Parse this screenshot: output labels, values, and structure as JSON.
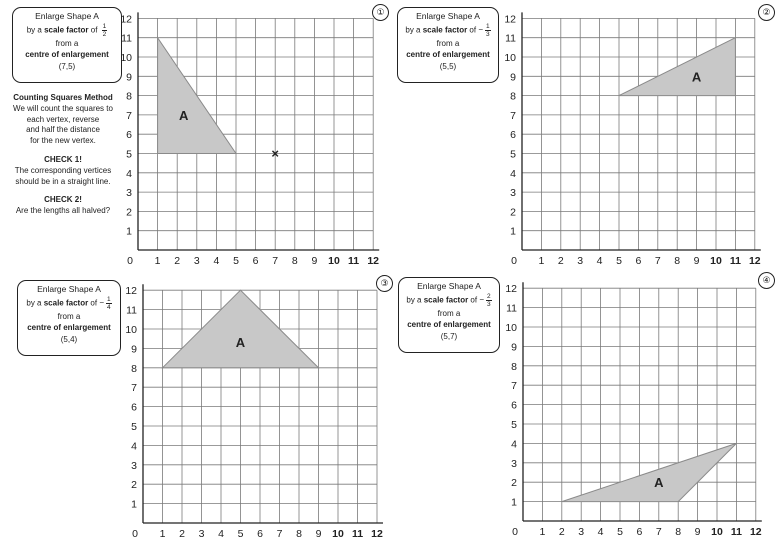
{
  "method_notes": {
    "heading": "Counting Squares Method",
    "lines": [
      "We will count the squares to",
      "each vertex, reverse",
      "and half the distance",
      "for the new vertex."
    ],
    "check1_heading": "CHECK 1!",
    "check1_lines": [
      "The corresponding vertices",
      "should be in a straight line."
    ],
    "check2_heading": "CHECK 2!",
    "check2_lines": [
      "Are the lengths all halved?"
    ]
  },
  "questions": [
    {
      "number": "①",
      "instruction": {
        "title": "Enlarge Shape A",
        "factor_prefix": "by a ",
        "factor_bold": "scale factor",
        "factor_suffix": " of ",
        "factor_sign": "",
        "factor_num": "1",
        "factor_den": "2",
        "from": "from a",
        "centre_label": "centre of enlargement",
        "centre": "(7,5)"
      },
      "shape_label": "A",
      "shape_vertices": [
        [
          1,
          11
        ],
        [
          1,
          5
        ],
        [
          5,
          5
        ]
      ],
      "centre_point": [
        7,
        5
      ],
      "centre_marker": "×",
      "axis_ticks": [
        "0",
        "1",
        "2",
        "3",
        "4",
        "5",
        "6",
        "7",
        "8",
        "9",
        "10",
        "11",
        "12"
      ]
    },
    {
      "number": "②",
      "instruction": {
        "title": "Enlarge Shape A",
        "factor_prefix": "by a ",
        "factor_bold": "scale factor",
        "factor_suffix": " of ",
        "factor_sign": "−",
        "factor_num": "1",
        "factor_den": "3",
        "from": "from a",
        "centre_label": "centre of enlargement",
        "centre": "(5,5)"
      },
      "shape_label": "A",
      "shape_vertices": [
        [
          5,
          8
        ],
        [
          11,
          8
        ],
        [
          11,
          11
        ]
      ],
      "centre_point": null,
      "axis_ticks": [
        "0",
        "1",
        "2",
        "3",
        "4",
        "5",
        "6",
        "7",
        "8",
        "9",
        "10",
        "11",
        "12"
      ]
    },
    {
      "number": "③",
      "instruction": {
        "title": "Enlarge Shape A",
        "factor_prefix": "by a ",
        "factor_bold": "scale factor",
        "factor_suffix": " of ",
        "factor_sign": "−",
        "factor_num": "1",
        "factor_den": "4",
        "from": "from a",
        "centre_label": "centre of enlargement",
        "centre": "(5,4)"
      },
      "shape_label": "A",
      "shape_vertices": [
        [
          1,
          8
        ],
        [
          5,
          12
        ],
        [
          9,
          8
        ]
      ],
      "centre_point": null,
      "axis_ticks": [
        "0",
        "1",
        "2",
        "3",
        "4",
        "5",
        "6",
        "7",
        "8",
        "9",
        "10",
        "11",
        "12"
      ]
    },
    {
      "number": "④",
      "instruction": {
        "title": "Enlarge Shape A",
        "factor_prefix": "by a ",
        "factor_bold": "scale factor",
        "factor_suffix": " of ",
        "factor_sign": "−",
        "factor_num": "2",
        "factor_den": "3",
        "from": "from a",
        "centre_label": "centre of enlargement",
        "centre": "(5,7)"
      },
      "shape_label": "A",
      "shape_vertices": [
        [
          2,
          1
        ],
        [
          8,
          1
        ],
        [
          11,
          4
        ]
      ],
      "centre_point": null,
      "axis_ticks": [
        "0",
        "1",
        "2",
        "3",
        "4",
        "5",
        "6",
        "7",
        "8",
        "9",
        "10",
        "11",
        "12"
      ]
    }
  ],
  "colors": {
    "grid_line": "#7a7a7a",
    "axis": "#222222",
    "shape_fill": "#c8c8c8",
    "shape_stroke": "#8a8a8a"
  }
}
